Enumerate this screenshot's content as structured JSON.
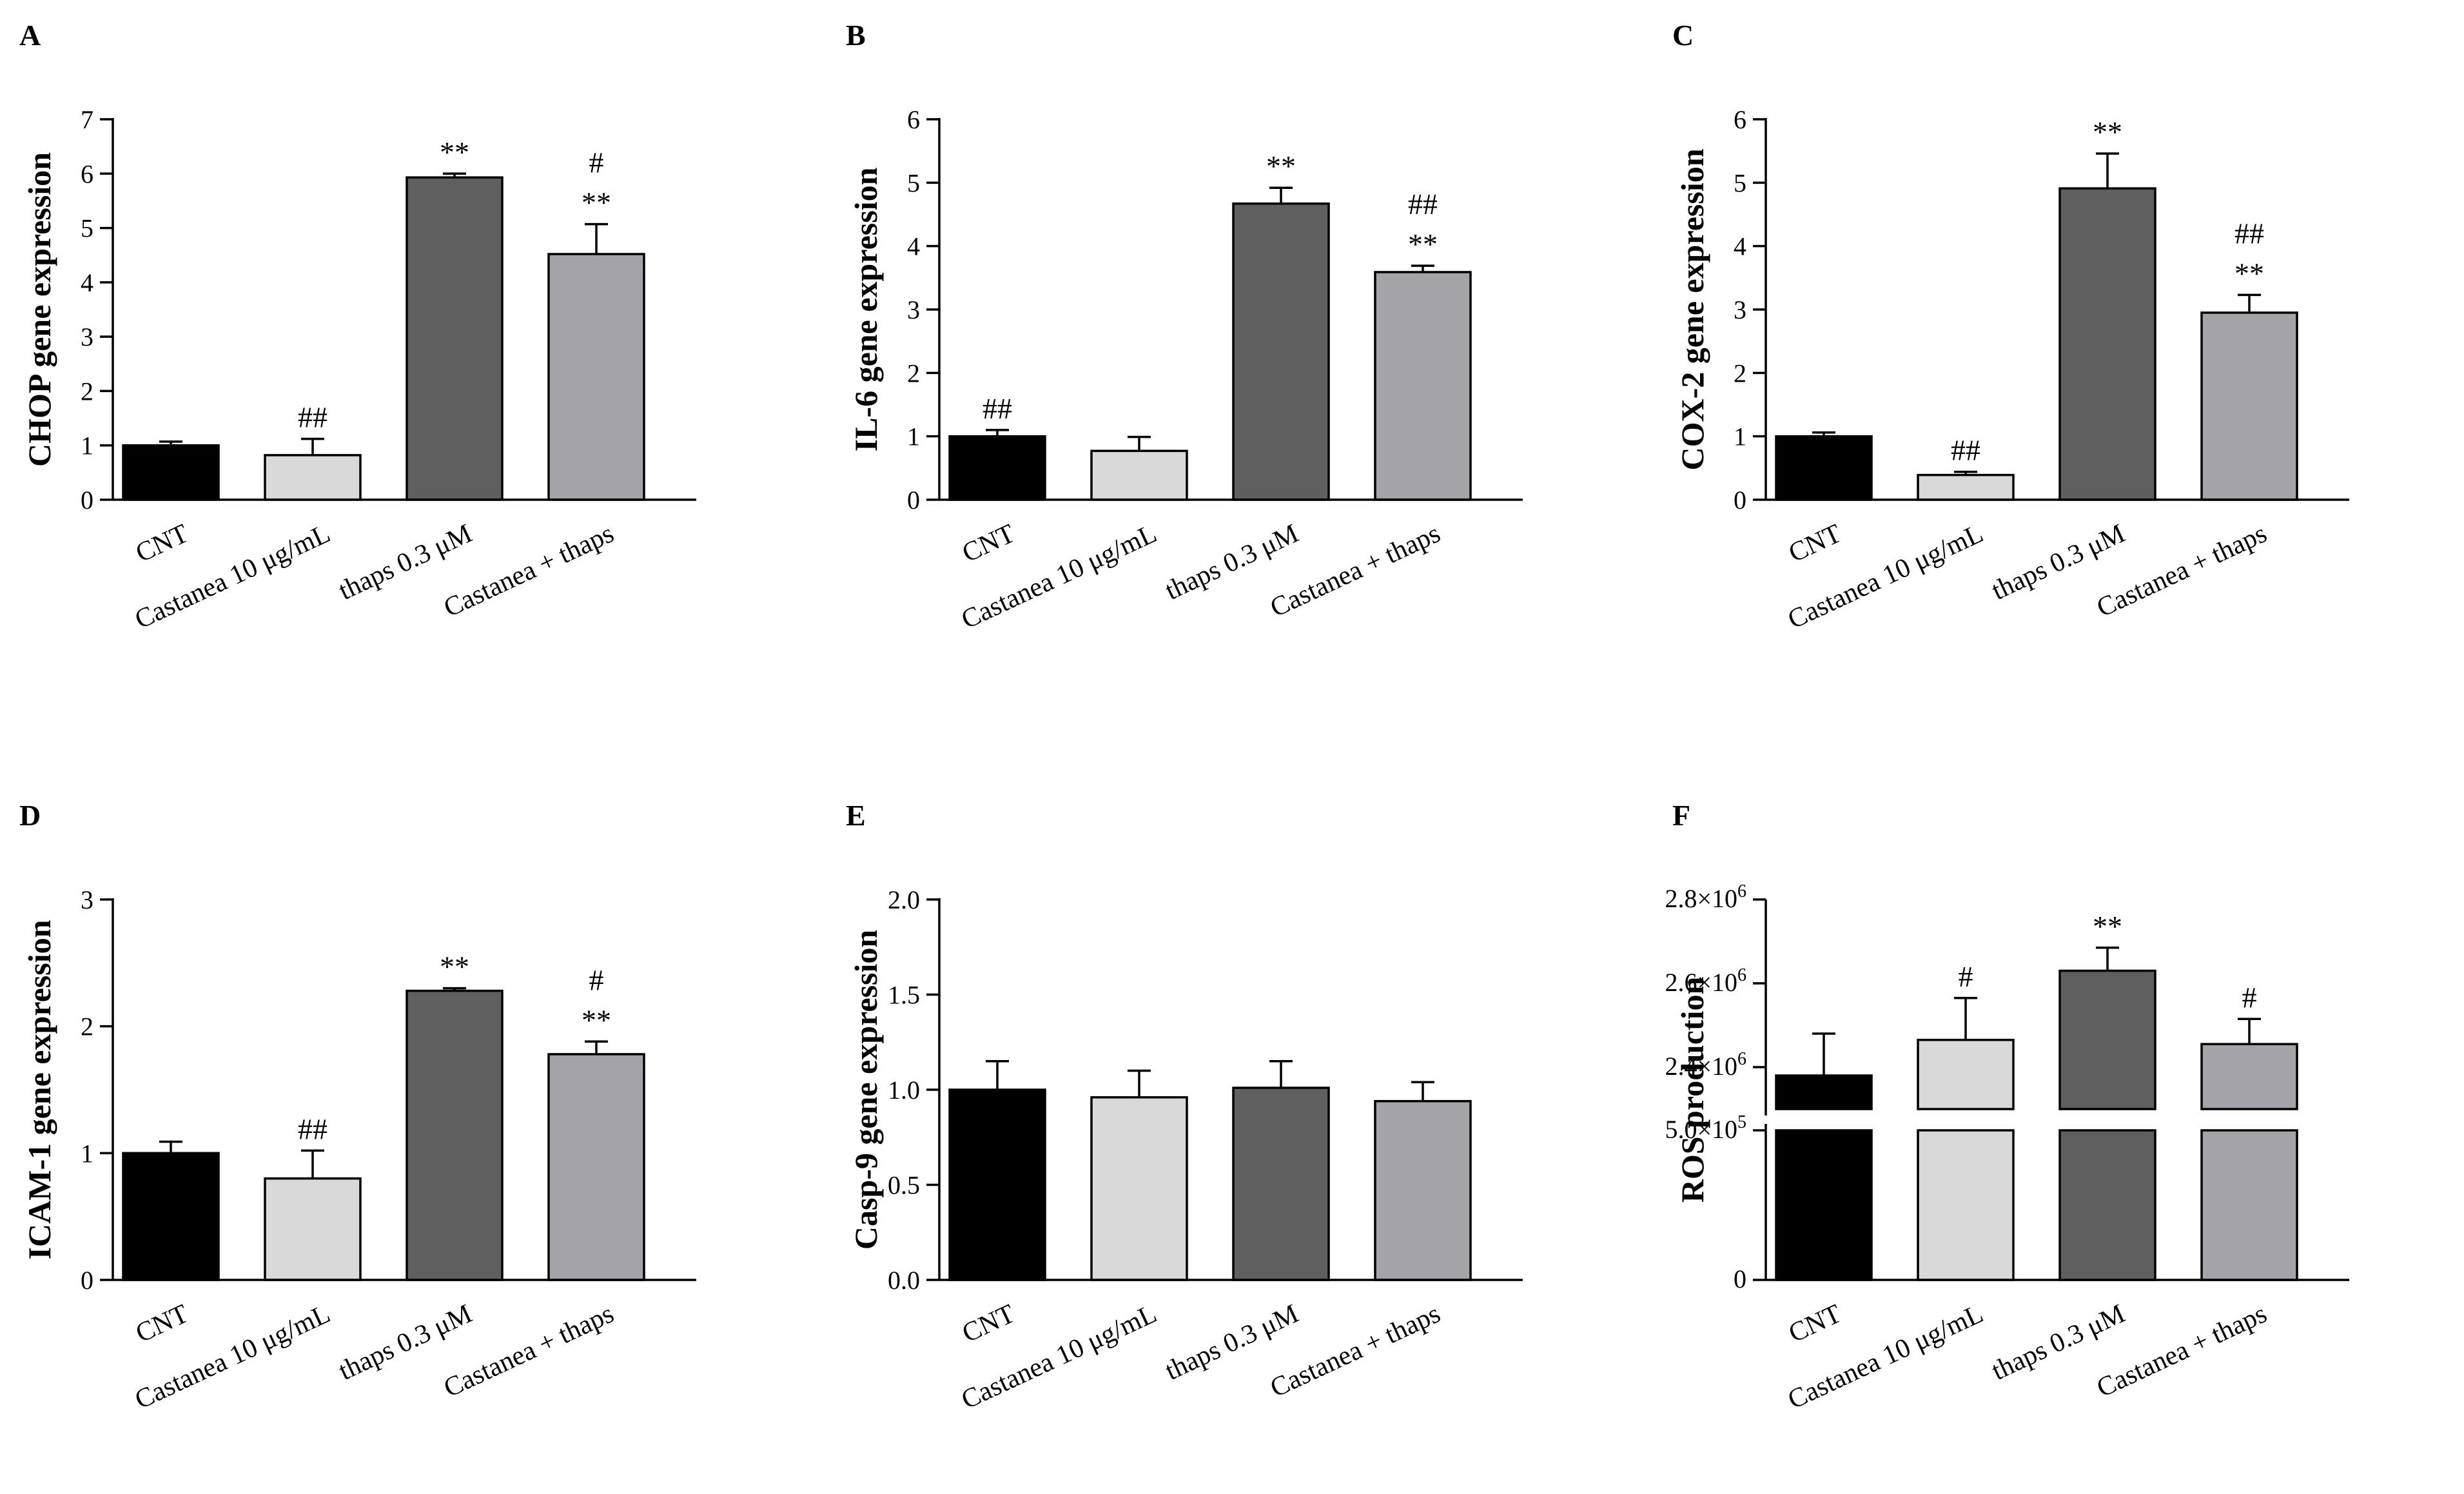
{
  "colors": [
    "#000000",
    "#d9d9d9",
    "#5f5f5f",
    "#a3a3a8"
  ],
  "categories": [
    "CNT",
    "Castanea 10 μg/mL",
    "thaps 0.3 μM",
    "Castanea + thaps"
  ],
  "chart_data": [
    {
      "panel": "A",
      "type": "bar",
      "ylabel": "CHOP gene expression",
      "ylim": [
        0,
        7
      ],
      "ticks": [
        0,
        1,
        2,
        3,
        4,
        5,
        6,
        7
      ],
      "tick_labels": [
        "0",
        "1",
        "2",
        "3",
        "4",
        "5",
        "6",
        "7"
      ],
      "values": [
        1.0,
        0.82,
        5.93,
        4.52
      ],
      "errors": [
        0.07,
        0.3,
        0.07,
        0.55
      ],
      "annotations": [
        [],
        [
          "##"
        ],
        [
          "**"
        ],
        [
          "#",
          "**"
        ]
      ]
    },
    {
      "panel": "B",
      "type": "bar",
      "ylabel": "IL-6 gene expression",
      "ylim": [
        0,
        6
      ],
      "ticks": [
        0,
        1,
        2,
        3,
        4,
        5,
        6
      ],
      "tick_labels": [
        "0",
        "1",
        "2",
        "3",
        "4",
        "5",
        "6"
      ],
      "values": [
        1.0,
        0.77,
        4.67,
        3.59
      ],
      "errors": [
        0.1,
        0.22,
        0.25,
        0.1
      ],
      "annotations": [
        [
          "##"
        ],
        [],
        [
          "**"
        ],
        [
          "##",
          "**"
        ]
      ]
    },
    {
      "panel": "C",
      "type": "bar",
      "ylabel": "COX-2 gene expression",
      "ylim": [
        0,
        6
      ],
      "ticks": [
        0,
        1,
        2,
        3,
        4,
        5,
        6
      ],
      "tick_labels": [
        "0",
        "1",
        "2",
        "3",
        "4",
        "5",
        "6"
      ],
      "values": [
        1.0,
        0.39,
        4.91,
        2.95
      ],
      "errors": [
        0.06,
        0.05,
        0.55,
        0.28
      ],
      "annotations": [
        [],
        [
          "##"
        ],
        [
          "**"
        ],
        [
          "##",
          "**"
        ]
      ]
    },
    {
      "panel": "D",
      "type": "bar",
      "ylabel": "ICAM-1 gene expression",
      "ylim": [
        0,
        3
      ],
      "ticks": [
        0,
        1,
        2,
        3
      ],
      "tick_labels": [
        "0",
        "1",
        "2",
        "3"
      ],
      "values": [
        1.0,
        0.8,
        2.28,
        1.78
      ],
      "errors": [
        0.09,
        0.22,
        0.02,
        0.1
      ],
      "annotations": [
        [],
        [
          "##"
        ],
        [
          "**"
        ],
        [
          "#",
          "**"
        ]
      ]
    },
    {
      "panel": "E",
      "type": "bar",
      "ylabel": "Casp-9 gene expression",
      "ylim": [
        0,
        2
      ],
      "ticks": [
        0,
        0.5,
        1.0,
        1.5,
        2.0
      ],
      "tick_labels": [
        "0.0",
        "0.5",
        "1.0",
        "1.5",
        "2.0"
      ],
      "values": [
        1.0,
        0.96,
        1.01,
        0.94
      ],
      "errors": [
        0.15,
        0.14,
        0.14,
        0.1
      ],
      "annotations": [
        [],
        [],
        [],
        []
      ]
    },
    {
      "panel": "F",
      "type": "bar",
      "ylabel": "ROS production",
      "axis_break": true,
      "lower_range": [
        0,
        500000
      ],
      "upper_range": [
        2300000,
        2800000
      ],
      "ticks": [
        0,
        500000,
        2400000,
        2600000,
        2800000
      ],
      "tick_labels": [
        {
          "mantissa": "0",
          "exp": ""
        },
        {
          "mantissa": "5.0×10",
          "exp": "5"
        },
        {
          "mantissa": "2.4×10",
          "exp": "6"
        },
        {
          "mantissa": "2.6×10",
          "exp": "6"
        },
        {
          "mantissa": "2.8×10",
          "exp": "6"
        }
      ],
      "values": [
        2380000,
        2465000,
        2630000,
        2455000
      ],
      "errors": [
        100000,
        100000,
        55000,
        60000
      ],
      "annotations": [
        [],
        [
          "#"
        ],
        [
          "**"
        ],
        [
          "#"
        ]
      ]
    }
  ]
}
